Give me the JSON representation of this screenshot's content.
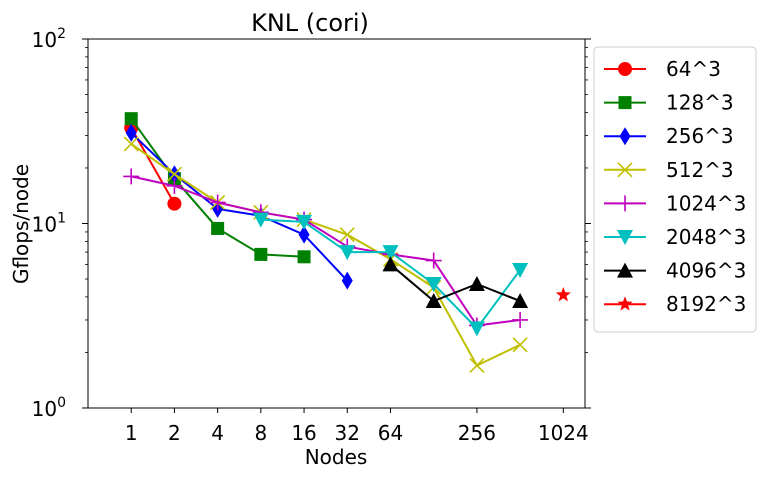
{
  "chart_data": {
    "type": "line",
    "title": "KNL (cori)",
    "xlabel": "Nodes",
    "ylabel": "Gflops/node",
    "x_scale": "log2",
    "y_scale": "log10",
    "xticks": [
      1,
      2,
      4,
      8,
      16,
      32,
      64,
      256,
      1024
    ],
    "xlim": [
      0.5,
      1450
    ],
    "ylim": [
      1,
      100
    ],
    "yticks": [
      {
        "value": 1,
        "base": "10",
        "exp": "0"
      },
      {
        "value": 10,
        "base": "10",
        "exp": "1"
      },
      {
        "value": 100,
        "base": "10",
        "exp": "2"
      }
    ],
    "legend_position": "outside-right",
    "series": [
      {
        "name": "64^3",
        "color": "#ff0000",
        "marker": "circle",
        "x": [
          1,
          2
        ],
        "y": [
          33,
          12.8
        ]
      },
      {
        "name": "128^3",
        "color": "#008000",
        "marker": "square",
        "x": [
          1,
          2,
          4,
          8,
          16
        ],
        "y": [
          37,
          17.5,
          9.4,
          6.8,
          6.6
        ]
      },
      {
        "name": "256^3",
        "color": "#0000ff",
        "marker": "thin_diamond",
        "x": [
          1,
          2,
          4,
          8,
          16,
          32
        ],
        "y": [
          31,
          18.5,
          12,
          11,
          8.7,
          4.9
        ]
      },
      {
        "name": "512^3",
        "color": "#bfbf00",
        "marker": "x",
        "x": [
          1,
          2,
          4,
          8,
          16,
          32,
          64,
          128,
          256,
          512
        ],
        "y": [
          27,
          18.5,
          13,
          11.5,
          10.5,
          8.7,
          6.4,
          4.5,
          1.7,
          2.2
        ]
      },
      {
        "name": "1024^3",
        "color": "#bf00bf",
        "marker": "plus",
        "x": [
          1,
          2,
          4,
          8,
          16,
          32,
          64,
          128,
          256,
          512
        ],
        "y": [
          18,
          16,
          13,
          11.5,
          10.5,
          7.5,
          6.8,
          6.3,
          2.8,
          3.0
        ]
      },
      {
        "name": "2048^3",
        "color": "#00bfbf",
        "marker": "triangle_down",
        "x": [
          8,
          16,
          32,
          64,
          128,
          256,
          512
        ],
        "y": [
          10.5,
          10.2,
          7.0,
          7.0,
          4.7,
          2.7,
          5.6
        ]
      },
      {
        "name": "4096^3",
        "color": "#000000",
        "marker": "triangle_up",
        "x": [
          64,
          128,
          256,
          512
        ],
        "y": [
          6.0,
          3.8,
          4.7,
          3.8
        ]
      },
      {
        "name": "8192^3",
        "color": "#ff0000",
        "marker": "star",
        "x": [
          1024
        ],
        "y": [
          4.1
        ]
      }
    ]
  }
}
